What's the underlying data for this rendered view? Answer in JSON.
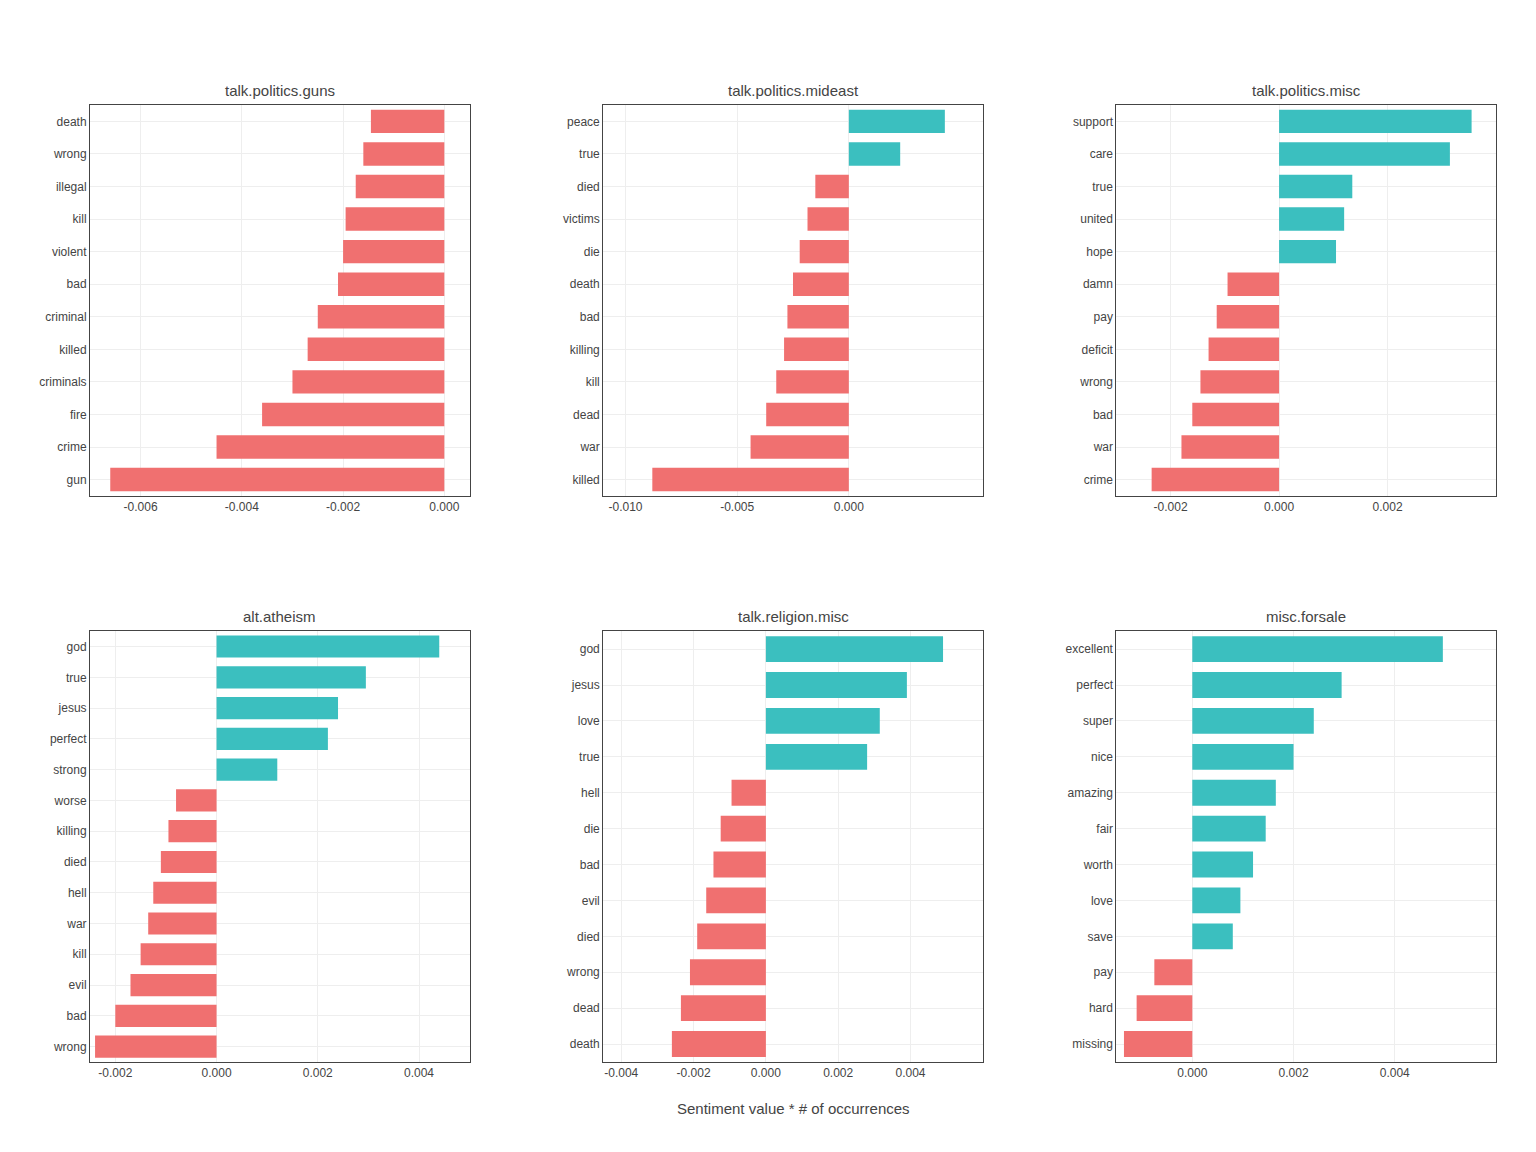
{
  "chart_data": [
    {
      "type": "bar",
      "orientation": "horizontal",
      "title": "talk.politics.guns",
      "categories": [
        "death",
        "wrong",
        "illegal",
        "kill",
        "violent",
        "bad",
        "criminal",
        "killed",
        "criminals",
        "fire",
        "crime",
        "gun"
      ],
      "values": [
        -0.00145,
        -0.0016,
        -0.00175,
        -0.00195,
        -0.002,
        -0.0021,
        -0.0025,
        -0.0027,
        -0.003,
        -0.0036,
        -0.0045,
        -0.0066
      ],
      "colors": [
        "#F07070",
        "#F07070",
        "#F07070",
        "#F07070",
        "#F07070",
        "#F07070",
        "#F07070",
        "#F07070",
        "#F07070",
        "#F07070",
        "#F07070",
        "#F07070"
      ],
      "xlim": [
        -0.007,
        0.0005
      ],
      "xticks": [
        -0.006,
        -0.004,
        -0.002,
        {
          "value": 0,
          "label": "0.000"
        }
      ],
      "grid": true
    },
    {
      "type": "bar",
      "orientation": "horizontal",
      "title": "talk.politics.mideast",
      "categories": [
        "peace",
        "true",
        "died",
        "victims",
        "die",
        "death",
        "bad",
        "killing",
        "kill",
        "dead",
        "war",
        "killed"
      ],
      "values": [
        0.0043,
        0.0023,
        -0.0015,
        -0.00185,
        -0.0022,
        -0.0025,
        -0.00275,
        -0.0029,
        -0.00325,
        -0.0037,
        -0.0044,
        -0.0088
      ],
      "colors": [
        "#3BBFBF",
        "#3BBFBF",
        "#F07070",
        "#F07070",
        "#F07070",
        "#F07070",
        "#F07070",
        "#F07070",
        "#F07070",
        "#F07070",
        "#F07070",
        "#F07070"
      ],
      "xlim": [
        -0.011,
        0.006
      ],
      "xticks": [
        {
          "value": -0.01,
          "label": "-0.010"
        },
        -0.005,
        {
          "value": 0,
          "label": "0.000"
        }
      ],
      "grid": true
    },
    {
      "type": "bar",
      "orientation": "horizontal",
      "title": "talk.politics.misc",
      "categories": [
        "support",
        "care",
        "true",
        "united",
        "hope",
        "damn",
        "pay",
        "deficit",
        "wrong",
        "bad",
        "war",
        "crime"
      ],
      "values": [
        0.00355,
        0.00315,
        0.00135,
        0.0012,
        0.00105,
        -0.00095,
        -0.00115,
        -0.0013,
        -0.00145,
        -0.0016,
        -0.0018,
        -0.00235
      ],
      "colors": [
        "#3BBFBF",
        "#3BBFBF",
        "#3BBFBF",
        "#3BBFBF",
        "#3BBFBF",
        "#F07070",
        "#F07070",
        "#F07070",
        "#F07070",
        "#F07070",
        "#F07070",
        "#F07070"
      ],
      "xlim": [
        -0.003,
        0.004
      ],
      "xticks": [
        -0.002,
        {
          "value": 0,
          "label": "0.000"
        },
        0.002
      ],
      "grid": true
    },
    {
      "type": "bar",
      "orientation": "horizontal",
      "title": "alt.atheism",
      "categories": [
        "god",
        "true",
        "jesus",
        "perfect",
        "strong",
        "worse",
        "killing",
        "died",
        "hell",
        "war",
        "kill",
        "evil",
        "bad",
        "wrong"
      ],
      "values": [
        0.0044,
        0.00295,
        0.0024,
        0.0022,
        0.0012,
        -0.0008,
        -0.00095,
        -0.0011,
        -0.00125,
        -0.00135,
        -0.0015,
        -0.0017,
        -0.002,
        -0.0024
      ],
      "colors": [
        "#3BBFBF",
        "#3BBFBF",
        "#3BBFBF",
        "#3BBFBF",
        "#3BBFBF",
        "#F07070",
        "#F07070",
        "#F07070",
        "#F07070",
        "#F07070",
        "#F07070",
        "#F07070",
        "#F07070",
        "#F07070"
      ],
      "xlim": [
        -0.0025,
        0.005
      ],
      "xticks": [
        -0.002,
        {
          "value": 0,
          "label": "0.000"
        },
        0.002,
        0.004
      ],
      "grid": true
    },
    {
      "type": "bar",
      "orientation": "horizontal",
      "title": "talk.religion.misc",
      "categories": [
        "god",
        "jesus",
        "love",
        "true",
        "hell",
        "die",
        "bad",
        "evil",
        "died",
        "wrong",
        "dead",
        "death"
      ],
      "values": [
        0.0049,
        0.0039,
        0.00315,
        0.0028,
        -0.00095,
        -0.00125,
        -0.00145,
        -0.00165,
        -0.0019,
        -0.0021,
        -0.00235,
        -0.0026
      ],
      "colors": [
        "#3BBFBF",
        "#3BBFBF",
        "#3BBFBF",
        "#3BBFBF",
        "#F07070",
        "#F07070",
        "#F07070",
        "#F07070",
        "#F07070",
        "#F07070",
        "#F07070",
        "#F07070"
      ],
      "xlim": [
        -0.0045,
        0.006
      ],
      "xticks": [
        -0.004,
        -0.002,
        {
          "value": 0,
          "label": "0.000"
        },
        0.002,
        0.004
      ],
      "grid": true
    },
    {
      "type": "bar",
      "orientation": "horizontal",
      "title": "misc.forsale",
      "categories": [
        "excellent",
        "perfect",
        "super",
        "nice",
        "amazing",
        "fair",
        "worth",
        "love",
        "save",
        "pay",
        "hard",
        "missing"
      ],
      "values": [
        0.00495,
        0.00295,
        0.0024,
        0.002,
        0.00165,
        0.00145,
        0.0012,
        0.00095,
        0.0008,
        -0.00075,
        -0.0011,
        -0.00135
      ],
      "colors": [
        "#3BBFBF",
        "#3BBFBF",
        "#3BBFBF",
        "#3BBFBF",
        "#3BBFBF",
        "#3BBFBF",
        "#3BBFBF",
        "#3BBFBF",
        "#3BBFBF",
        "#F07070",
        "#F07070",
        "#F07070"
      ],
      "xlim": [
        -0.0015,
        0.006
      ],
      "xticks": [
        {
          "value": 0,
          "label": "0.000"
        },
        0.002,
        0.004
      ],
      "grid": true
    }
  ],
  "xlabel": "Sentiment value * # of occurrences"
}
